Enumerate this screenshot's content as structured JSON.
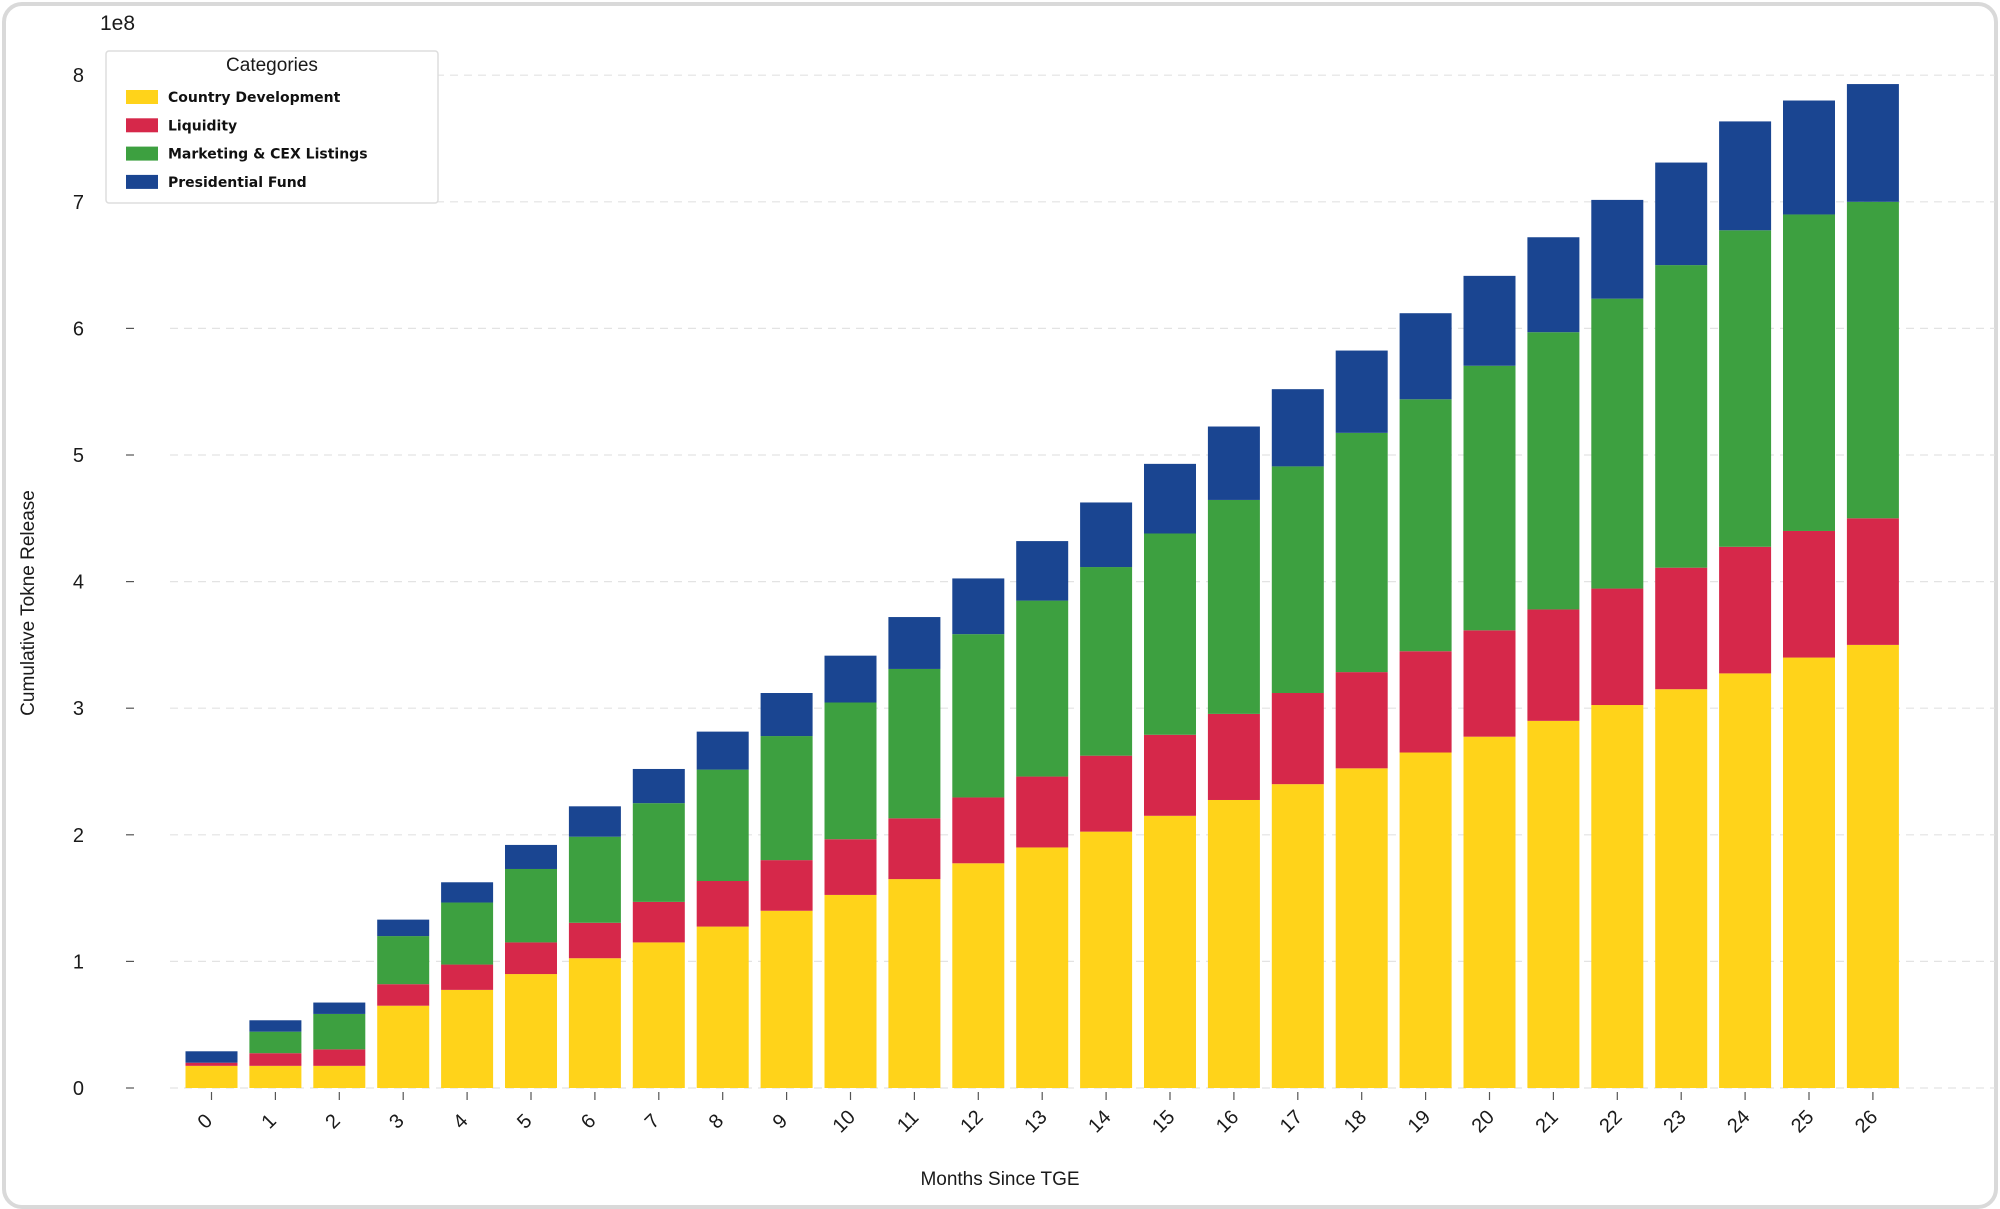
{
  "chart_data": {
    "type": "bar",
    "stacked": true,
    "title": "",
    "xlabel": "Months Since TGE",
    "ylabel": "Cumulative Tokne Release",
    "y_offset_label": "1e8",
    "ylim": [
      0,
      8.3
    ],
    "y_ticks": [
      0,
      1,
      2,
      3,
      4,
      5,
      6,
      7,
      8
    ],
    "grid": "horizontal dashed",
    "categories": [
      "0",
      "1",
      "2",
      "3",
      "4",
      "5",
      "6",
      "7",
      "8",
      "9",
      "10",
      "11",
      "12",
      "13",
      "14",
      "15",
      "16",
      "17",
      "18",
      "19",
      "20",
      "21",
      "22",
      "23",
      "24",
      "25",
      "26"
    ],
    "legend": {
      "title": "Categories",
      "position": "top-left"
    },
    "series": [
      {
        "name": "Country Development",
        "color": "#FFD31A",
        "values": [
          0.175,
          0.175,
          0.175,
          0.65,
          0.775,
          0.9,
          1.025,
          1.15,
          1.275,
          1.4,
          1.525,
          1.65,
          1.775,
          1.9,
          2.025,
          2.15,
          2.275,
          2.4,
          2.525,
          2.65,
          2.775,
          2.9,
          3.025,
          3.15,
          3.275,
          3.4,
          3.5
        ]
      },
      {
        "name": "Liquidity",
        "color": "#D6284A",
        "values": [
          0.025,
          0.1,
          0.13,
          0.17,
          0.2,
          0.25,
          0.28,
          0.32,
          0.36,
          0.4,
          0.44,
          0.48,
          0.52,
          0.56,
          0.6,
          0.64,
          0.68,
          0.72,
          0.76,
          0.8,
          0.84,
          0.88,
          0.92,
          0.96,
          1.0,
          1.0,
          1.0
        ]
      },
      {
        "name": "Marketing & CEX Listings",
        "color": "#3DA040",
        "values": [
          0,
          0.17,
          0.28,
          0.38,
          0.49,
          0.58,
          0.68,
          0.78,
          0.88,
          0.98,
          1.08,
          1.18,
          1.29,
          1.39,
          1.49,
          1.59,
          1.69,
          1.79,
          1.89,
          1.99,
          2.09,
          2.19,
          2.29,
          2.39,
          2.5,
          2.5,
          2.5
        ]
      },
      {
        "name": "Presidential Fund",
        "color": "#1A4591",
        "values": [
          0.09,
          0.09,
          0.09,
          0.13,
          0.16,
          0.19,
          0.24,
          0.27,
          0.3,
          0.34,
          0.37,
          0.41,
          0.44,
          0.47,
          0.51,
          0.55,
          0.58,
          0.61,
          0.65,
          0.68,
          0.71,
          0.75,
          0.78,
          0.81,
          0.86,
          0.9,
          0.93
        ]
      }
    ]
  }
}
